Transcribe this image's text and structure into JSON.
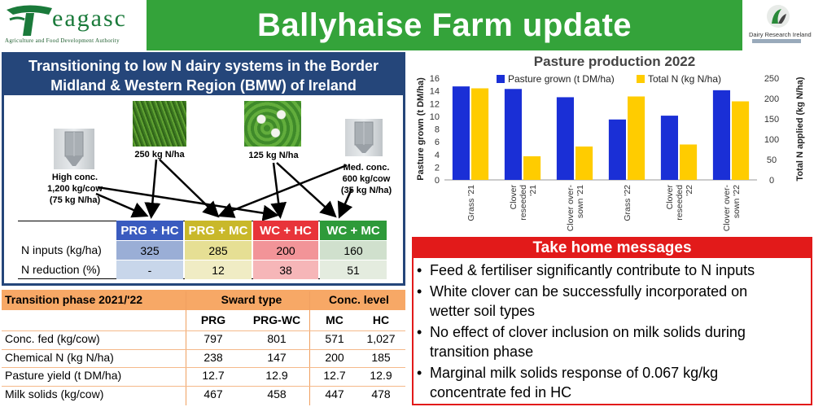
{
  "header": {
    "logo_word": "eagasc",
    "logo_sub": "Agriculture and Food Development Authority",
    "title": "Ballyhaise Farm update",
    "partner_logo_text": "Dairy Research Ireland"
  },
  "left_panel": {
    "title_line1": "Transitioning to low N dairy systems in the Border",
    "title_line2": "Midland & Western Region (BMW) of Ireland",
    "labels": {
      "high_conc_1": "High conc.",
      "high_conc_2": "1,200 kg/cow",
      "high_conc_3": "(75 kg N/ha)",
      "prg_n": "250 kg N/ha",
      "wc_n": "125 kg N/ha",
      "med_conc_1": "Med. conc.",
      "med_conc_2": "600 kg/cow",
      "med_conc_3": "(35 kg N/ha)"
    },
    "n_table": {
      "headers": [
        "PRG + HC",
        "PRG + MC",
        "WC + HC",
        "WC + MC"
      ],
      "header_colors": [
        "#3a5bbf",
        "#c9b82a",
        "#e8343a",
        "#2e9a3a"
      ],
      "cell_colors": [
        "#9aaed6",
        "#e6df94",
        "#f29498",
        "#d0e0cd"
      ],
      "cell_colors_row2": [
        "#c8d6ea",
        "#f0ecc4",
        "#f6b6b8",
        "#e4ecdf"
      ],
      "rows": [
        {
          "label": "N inputs (kg/ha)",
          "values": [
            "325",
            "285",
            "200",
            "160"
          ]
        },
        {
          "label": "N reduction (%)",
          "values": [
            "-",
            "12",
            "38",
            "51"
          ]
        }
      ]
    }
  },
  "transition_table": {
    "title": "Transition phase 2021/'22",
    "group_headers": [
      "Sward type",
      "Conc. level"
    ],
    "sub_headers": [
      "PRG",
      "PRG-WC",
      "MC",
      "HC"
    ],
    "rows": [
      {
        "label": "Conc. fed (kg/cow)",
        "values": [
          "797",
          "801",
          "571",
          "1,027"
        ]
      },
      {
        "label": "Chemical N (kg N/ha)",
        "values": [
          "238",
          "147",
          "200",
          "185"
        ]
      },
      {
        "label": "Pasture yield (t DM/ha)",
        "values": [
          "12.7",
          "12.9",
          "12.7",
          "12.9"
        ]
      },
      {
        "label": "Milk solids (kg/cow)",
        "values": [
          "467",
          "458",
          "447",
          "478"
        ]
      }
    ]
  },
  "chart_data": {
    "type": "bar",
    "title": "Pasture production 2022",
    "categories": [
      "Grass '21",
      "Clover reseeded '21",
      "Clover over-sown '21",
      "Grass '22",
      "Clover reseeded '22",
      "Clover over-sown '22"
    ],
    "category_lines": [
      [
        "Grass '21"
      ],
      [
        "Clover",
        "reseeded",
        "'21"
      ],
      [
        "Clover over-",
        "sown '21"
      ],
      [
        "Grass '22"
      ],
      [
        "Clover",
        "reseeded",
        "'22"
      ],
      [
        "Clover over-",
        "sown '22"
      ]
    ],
    "series": [
      {
        "name": "Pasture grown (t DM/ha)",
        "color": "#1a2fd6",
        "axis": "left",
        "values": [
          14.7,
          14.3,
          13.0,
          9.5,
          10.1,
          14.1
        ]
      },
      {
        "name": "Total N (kg N/ha)",
        "color": "#ffcc00",
        "axis": "right",
        "values": [
          225,
          58,
          82,
          205,
          87,
          193
        ]
      }
    ],
    "ylabel": "Pasture grown (t DM/ha)",
    "y2label": "Total N applied (kg N/ha)",
    "ylim": [
      0,
      16
    ],
    "y2lim": [
      0,
      250
    ],
    "yticks": [
      0,
      2,
      4,
      6,
      8,
      10,
      12,
      14,
      16
    ],
    "y2ticks": [
      0,
      50,
      100,
      150,
      200,
      250
    ],
    "legend": "top"
  },
  "messages": {
    "title": "Take home messages",
    "bullet": "•",
    "items": [
      {
        "lines": [
          "Feed & fertiliser significantly contribute to N inputs"
        ]
      },
      {
        "lines": [
          "White clover can be successfully incorporated on",
          "wetter soil types"
        ]
      },
      {
        "lines": [
          "No effect of clover inclusion on milk solids during",
          "transition phase"
        ]
      },
      {
        "lines": [
          "Marginal milk solids response of 0.067 kg/kg",
          "concentrate fed in HC"
        ]
      }
    ]
  }
}
